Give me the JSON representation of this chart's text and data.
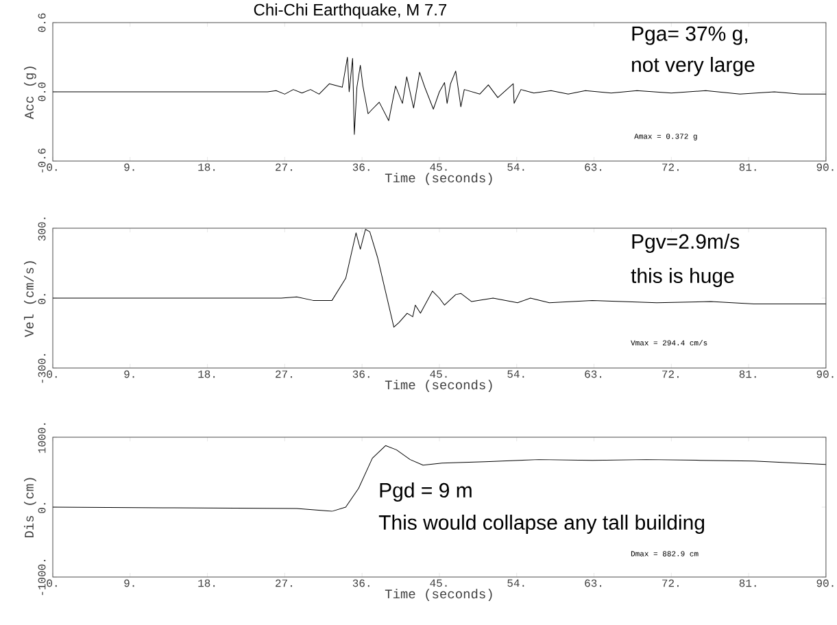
{
  "chart_data": [
    {
      "type": "line",
      "title": "Chi-Chi Earthquake, M 7.7",
      "xlabel": "Time (seconds)",
      "ylabel": "Acc (g)",
      "color": "#000000",
      "x": [
        0,
        25,
        26,
        27,
        28,
        29,
        30,
        31,
        32.2,
        33.7,
        34.3,
        34.5,
        34.9,
        35.1,
        35.4,
        35.8,
        36.1,
        36.7,
        37.2,
        38.0,
        39.1,
        39.9,
        40.7,
        41.2,
        42.0,
        42.7,
        43.3,
        44.3,
        45.0,
        45.6,
        45.9,
        46.3,
        46.9,
        47.5,
        47.9,
        49.7,
        50.7,
        51.8,
        53.6,
        53.7,
        54.5,
        56,
        58,
        60,
        62,
        65,
        68,
        72,
        76,
        80,
        84,
        87,
        90
      ],
      "values": [
        0,
        0,
        0.01,
        -0.02,
        0.02,
        -0.01,
        0.02,
        -0.02,
        0.07,
        0.04,
        0.3,
        0.0,
        0.29,
        -0.37,
        0.04,
        0.23,
        0.05,
        -0.19,
        -0.15,
        -0.09,
        -0.25,
        0.05,
        -0.1,
        0.13,
        -0.14,
        0.17,
        0.04,
        -0.15,
        0.0,
        0.08,
        -0.1,
        0.07,
        0.18,
        -0.13,
        0.02,
        -0.02,
        0.06,
        -0.05,
        0.07,
        -0.1,
        0.02,
        -0.01,
        0.01,
        -0.02,
        0.01,
        -0.01,
        0.01,
        -0.01,
        0.01,
        -0.02,
        0,
        -0.02,
        -0.02
      ],
      "xlim": [
        0,
        90
      ],
      "ylim": [
        -0.6,
        0.6
      ],
      "xticks": [
        {
          "value": 0,
          "label": "0."
        },
        {
          "value": 9,
          "label": "9."
        },
        {
          "value": 18,
          "label": "18."
        },
        {
          "value": 27,
          "label": "27."
        },
        {
          "value": 36,
          "label": "36."
        },
        {
          "value": 45,
          "label": "45."
        },
        {
          "value": 54,
          "label": "54."
        },
        {
          "value": 63,
          "label": "63."
        },
        {
          "value": 72,
          "label": "72."
        },
        {
          "value": 81,
          "label": "81."
        },
        {
          "value": 90,
          "label": "90."
        }
      ],
      "yticks": [
        {
          "value": -0.6,
          "label": "-0.6"
        },
        {
          "value": 0,
          "label": "0.0"
        },
        {
          "value": 0.6,
          "label": "0.6"
        }
      ],
      "annotations": [
        "Pga= 37% g,",
        "not very large",
        "Amax = 0.372 g"
      ]
    },
    {
      "type": "line",
      "xlabel": "Time (seconds)",
      "ylabel": "Vel (cm/s)",
      "color": "#000000",
      "x": [
        0,
        26.6,
        28.4,
        30.3,
        32.5,
        34.1,
        35.3,
        35.8,
        36.4,
        36.9,
        37.8,
        38.75,
        39.7,
        40.3,
        41.25,
        41.9,
        42.2,
        42.8,
        43.75,
        44.2,
        45.0,
        45.6,
        46.9,
        47.5,
        48.75,
        51.25,
        54.1,
        55.6,
        57.8,
        62.8,
        70.3,
        76.6,
        81.6,
        87.2,
        90
      ],
      "values": [
        0,
        0,
        5,
        -10,
        -10,
        85,
        280,
        210,
        295,
        285,
        175,
        25,
        -125,
        -105,
        -65,
        -80,
        -30,
        -65,
        0,
        30,
        0,
        -30,
        15,
        20,
        -15,
        0,
        -20,
        0,
        -20,
        -10,
        -20,
        -15,
        -25,
        -25,
        -25
      ],
      "xlim": [
        0,
        90
      ],
      "ylim": [
        -300,
        300
      ],
      "xticks": [
        {
          "value": 0,
          "label": "0."
        },
        {
          "value": 9,
          "label": "9."
        },
        {
          "value": 18,
          "label": "18."
        },
        {
          "value": 27,
          "label": "27."
        },
        {
          "value": 36,
          "label": "36."
        },
        {
          "value": 45,
          "label": "45."
        },
        {
          "value": 54,
          "label": "54."
        },
        {
          "value": 63,
          "label": "63."
        },
        {
          "value": 72,
          "label": "72."
        },
        {
          "value": 81,
          "label": "81."
        },
        {
          "value": 90,
          "label": "90."
        }
      ],
      "yticks": [
        {
          "value": -300,
          "label": "-300."
        },
        {
          "value": 0,
          "label": "0."
        },
        {
          "value": 300,
          "label": "300."
        }
      ],
      "annotations": [
        "Pgv=2.9m/s",
        "this is huge",
        "Vmax = 294.4 cm/s"
      ]
    },
    {
      "type": "line",
      "xlabel": "Time (seconds)",
      "ylabel": "Dis (cm)",
      "color": "#000000",
      "x": [
        0,
        12.8,
        28.4,
        32.5,
        34.1,
        35.6,
        37.2,
        38.75,
        40,
        41.6,
        43.1,
        45.3,
        50.3,
        56.6,
        62.8,
        69.1,
        75.3,
        81.6,
        86.6,
        90
      ],
      "values": [
        0,
        -10,
        -20,
        -60,
        0,
        270,
        700,
        880,
        820,
        680,
        600,
        630,
        650,
        680,
        670,
        680,
        670,
        660,
        630,
        610
      ],
      "xlim": [
        0,
        90
      ],
      "ylim": [
        -1000,
        1000
      ],
      "xticks": [
        {
          "value": 0,
          "label": "0."
        },
        {
          "value": 9,
          "label": "9."
        },
        {
          "value": 18,
          "label": "18."
        },
        {
          "value": 27,
          "label": "27."
        },
        {
          "value": 36,
          "label": "36."
        },
        {
          "value": 45,
          "label": "45."
        },
        {
          "value": 54,
          "label": "54."
        },
        {
          "value": 63,
          "label": "63."
        },
        {
          "value": 72,
          "label": "72."
        },
        {
          "value": 81,
          "label": "81."
        },
        {
          "value": 90,
          "label": "90."
        }
      ],
      "yticks": [
        {
          "value": -1000,
          "label": "-1000."
        },
        {
          "value": 0,
          "label": "0."
        },
        {
          "value": 1000,
          "label": "1000."
        }
      ],
      "annotations": [
        "Pgd = 9 m",
        "This would collapse any tall building",
        "Dmax = 882.9 cm"
      ]
    }
  ]
}
